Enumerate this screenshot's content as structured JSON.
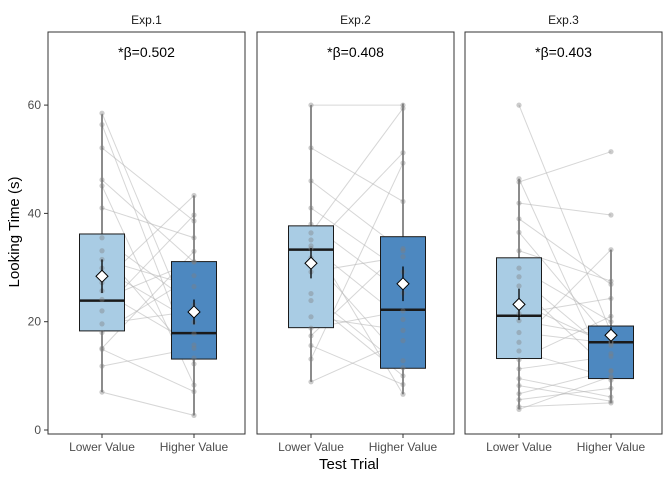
{
  "chart_data": {
    "type": "box",
    "xlabel": "Test Trial",
    "ylabel": "Looking Time (s)",
    "ylim": [
      0,
      73
    ],
    "yticks": [
      0,
      20,
      40,
      60
    ],
    "categories": [
      "Lower Value",
      "Higher Value"
    ],
    "colors": {
      "Lower Value": "#a9cce4",
      "Higher Value": "#4d88c0"
    },
    "grid": false,
    "panels": [
      {
        "title": "Exp.1",
        "annotation": "*β=0.502",
        "boxes": [
          {
            "category": "Lower Value",
            "min": 7,
            "q1": 18.3,
            "median": 23.9,
            "q3": 36.2,
            "max": 58.3,
            "mean": 28.4,
            "ci": [
              25.3,
              31.5
            ]
          },
          {
            "category": "Higher Value",
            "min": 2.7,
            "q1": 13.1,
            "median": 17.9,
            "q3": 31.1,
            "max": 43.3,
            "mean": 21.8,
            "ci": [
              19.5,
              24.1
            ]
          }
        ],
        "pairs": [
          [
            58.5,
            17.8
          ],
          [
            56.4,
            12.2
          ],
          [
            52.1,
            38.6
          ],
          [
            46.2,
            31.0
          ],
          [
            45.1,
            8.3
          ],
          [
            41.0,
            35.5
          ],
          [
            35.5,
            23.1
          ],
          [
            33.1,
            13.3
          ],
          [
            31.5,
            26.5
          ],
          [
            29.9,
            19.9
          ],
          [
            27.2,
            43.3
          ],
          [
            25.7,
            15.7
          ],
          [
            24.1,
            31.1
          ],
          [
            22.0,
            39.7
          ],
          [
            19.6,
            22.0
          ],
          [
            18.0,
            28.5
          ],
          [
            15.1,
            33.0
          ],
          [
            14.9,
            7.1
          ],
          [
            11.8,
            15.1
          ],
          [
            7.0,
            2.7
          ]
        ]
      },
      {
        "title": "Exp.2",
        "annotation": "*β=0.408",
        "boxes": [
          {
            "category": "Lower Value",
            "min": 8.9,
            "q1": 18.9,
            "median": 33.3,
            "q3": 37.7,
            "max": 60,
            "mean": 30.8,
            "ci": [
              28.0,
              33.6
            ]
          },
          {
            "category": "Higher Value",
            "min": 6.6,
            "q1": 11.4,
            "median": 22.2,
            "q3": 35.7,
            "max": 60.3,
            "mean": 27.0,
            "ci": [
              23.8,
              30.2
            ]
          }
        ],
        "pairs": [
          [
            60.0,
            60.0
          ],
          [
            52.1,
            42.2
          ],
          [
            46.0,
            33.1
          ],
          [
            41.0,
            29.2
          ],
          [
            38.0,
            25.3
          ],
          [
            36.4,
            59.4
          ],
          [
            35.1,
            6.6
          ],
          [
            34.0,
            20.4
          ],
          [
            33.5,
            51.2
          ],
          [
            31.8,
            12.8
          ],
          [
            29.2,
            32.0
          ],
          [
            25.2,
            11.5
          ],
          [
            23.9,
            10.0
          ],
          [
            20.9,
            18.4
          ],
          [
            18.8,
            22.0
          ],
          [
            17.4,
            33.5
          ],
          [
            15.6,
            8.4
          ],
          [
            13.1,
            49.3
          ],
          [
            8.9,
            16.5
          ]
        ]
      },
      {
        "title": "Exp.3",
        "annotation": "*β=0.403",
        "boxes": [
          {
            "category": "Lower Value",
            "min": 3.8,
            "q1": 13.2,
            "median": 21.1,
            "q3": 31.8,
            "max": 46.4,
            "mean": 23.2,
            "ci": [
              20.3,
              26.1
            ]
          },
          {
            "category": "Higher Value",
            "min": 5.0,
            "q1": 9.5,
            "median": 16.2,
            "q3": 19.2,
            "max": 33.3,
            "mean": 17.5,
            "ci": [
              16.0,
              19.0
            ]
          }
        ],
        "pairs": [
          [
            60.0,
            18.0
          ],
          [
            46.4,
            9.2
          ],
          [
            45.8,
            51.4
          ],
          [
            41.9,
            39.7
          ],
          [
            39.0,
            26.9
          ],
          [
            36.5,
            16.3
          ],
          [
            33.1,
            27.5
          ],
          [
            29.9,
            20.0
          ],
          [
            28.3,
            14.1
          ],
          [
            26.6,
            10.8
          ],
          [
            23.5,
            15.6
          ],
          [
            21.5,
            24.3
          ],
          [
            20.2,
            17.2
          ],
          [
            18.0,
            16.0
          ],
          [
            16.2,
            33.3
          ],
          [
            14.6,
            9.6
          ],
          [
            13.0,
            21.0
          ],
          [
            11.3,
            13.6
          ],
          [
            9.5,
            6.1
          ],
          [
            8.2,
            5.3
          ],
          [
            6.7,
            11.0
          ],
          [
            5.6,
            7.7
          ],
          [
            4.3,
            5.0
          ],
          [
            3.8,
            9.9
          ]
        ]
      }
    ]
  }
}
